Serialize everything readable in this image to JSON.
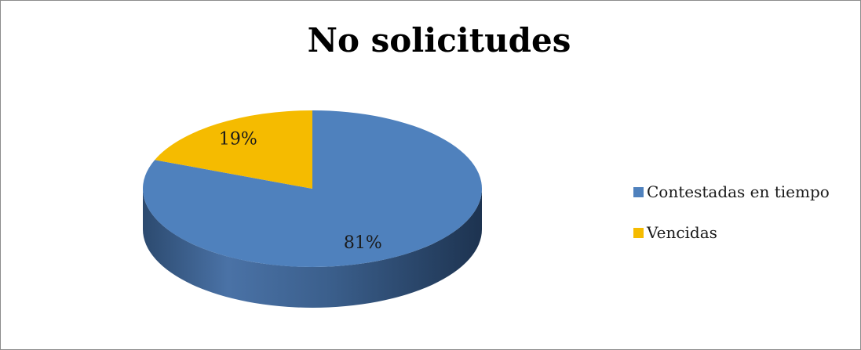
{
  "chart_data": {
    "type": "pie",
    "title": "No solicitudes",
    "slices": [
      {
        "label": "Contestadas en tiempo",
        "value": 81,
        "display": "81%",
        "color": "#4f81bd"
      },
      {
        "label": "Vencidas",
        "value": 19,
        "display": "19%",
        "color": "#f5bb00"
      }
    ],
    "legend_position": "right",
    "style": "3d"
  }
}
